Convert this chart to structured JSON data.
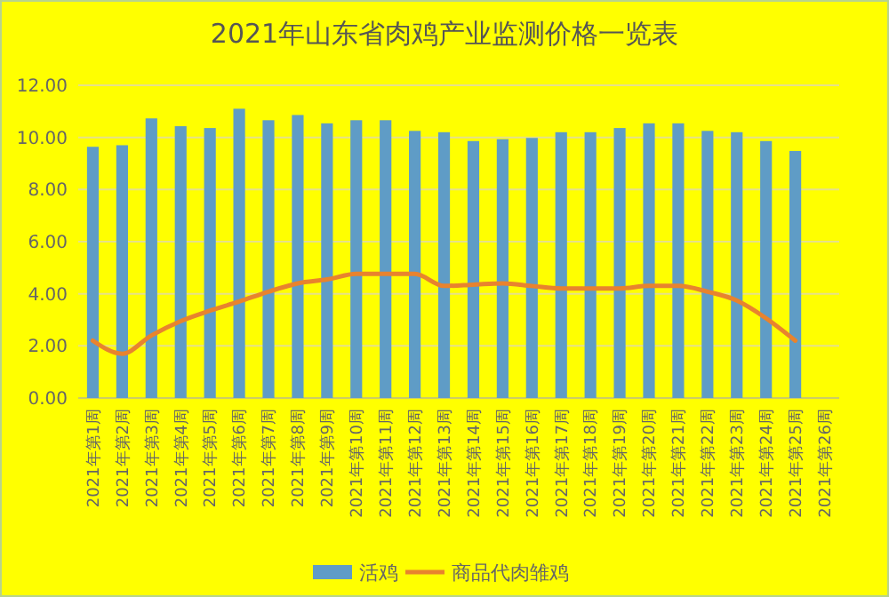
{
  "chart_data": {
    "type": "bar",
    "title": "2021年山东省肉鸡产业监测价格一览表",
    "categories": [
      "2021年第1周",
      "2021年第2周",
      "2021年第3周",
      "2021年第4周",
      "2021年第5周",
      "2021年第6周",
      "2021年第7周",
      "2021年第8周",
      "2021年第9周",
      "2021年第10周",
      "2021年第11周",
      "2021年第12周",
      "2021年第13周",
      "2021年第14周",
      "2021年第15周",
      "2021年第16周",
      "2021年第17周",
      "2021年第18周",
      "2021年第19周",
      "2021年第20周",
      "2021年第21周",
      "2021年第22周",
      "2021年第23周",
      "2021年第24周",
      "2021年第25周",
      "2021年第26周"
    ],
    "series": [
      {
        "name": "活鸡",
        "color": "#5f9cc6",
        "values": [
          9.64,
          9.7,
          10.73,
          10.43,
          10.36,
          11.1,
          10.66,
          10.86,
          10.54,
          10.66,
          10.66,
          10.25,
          10.2,
          9.86,
          9.93,
          9.98,
          10.2,
          10.2,
          10.36,
          10.54,
          10.54,
          10.25,
          10.2,
          9.86,
          9.48,
          null
        ]
      },
      {
        "name": "商品代肉雏鸡",
        "type": "line",
        "color": "#e8832e",
        "values": [
          2.2,
          1.7,
          2.4,
          2.95,
          3.35,
          3.7,
          4.08,
          4.4,
          4.55,
          4.76,
          4.76,
          4.76,
          4.3,
          4.35,
          4.4,
          4.3,
          4.2,
          4.2,
          4.2,
          4.3,
          4.3,
          4.08,
          3.74,
          3.06,
          2.2,
          null
        ]
      }
    ],
    "ylim": [
      0,
      12
    ],
    "yticks": [
      {
        "value": 0,
        "label": "0.00"
      },
      {
        "value": 2,
        "label": "2.00"
      },
      {
        "value": 4,
        "label": "4.00"
      },
      {
        "value": 6,
        "label": "6.00"
      },
      {
        "value": 8,
        "label": "8.00"
      },
      {
        "value": 10,
        "label": "10.00"
      },
      {
        "value": 12,
        "label": "12.00"
      }
    ],
    "grid": "y",
    "legend": "bottom",
    "marker": "none",
    "line_style": "solid"
  }
}
